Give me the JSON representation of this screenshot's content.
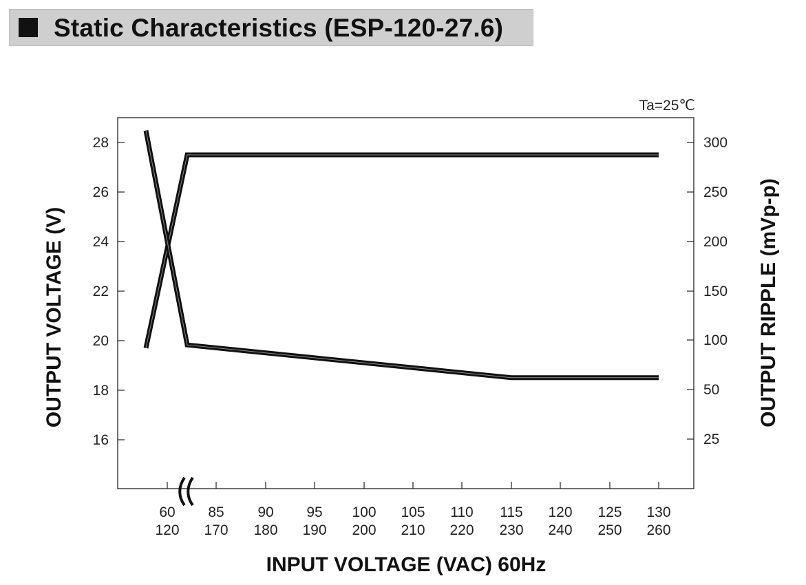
{
  "title": "Static Characteristics (ESP-120-27.6)",
  "chart_data": {
    "type": "line",
    "annotation": "Ta=25℃",
    "xlabel": "INPUT VOLTAGE (VAC) 60Hz",
    "ylabel_left": "OUTPUT VOLTAGE (V)",
    "ylabel_right": "OUTPUT RIPPLE (mVp-p)",
    "x_ticks_top": [
      "60",
      "85",
      "90",
      "95",
      "100",
      "105",
      "110",
      "115",
      "120",
      "125",
      "130"
    ],
    "x_ticks_bottom": [
      "120",
      "170",
      "180",
      "190",
      "200",
      "210",
      "220",
      "230",
      "240",
      "250",
      "260"
    ],
    "x_axis_break": "between 60/120 and 85/170",
    "y_left_ticks": [
      16,
      18,
      20,
      22,
      24,
      26,
      28
    ],
    "y_left_range": [
      14,
      29
    ],
    "y_right_ticks": [
      25,
      50,
      100,
      150,
      200,
      250,
      300
    ],
    "grid": false,
    "series": [
      {
        "name": "",
        "axis": "left",
        "unit": "V",
        "x": [
          "<60 / <120",
          "80 / 160",
          "130 / 260"
        ],
        "values": [
          19.7,
          27.5,
          27.5
        ]
      },
      {
        "name": "",
        "axis": "right",
        "unit": "mVp-p",
        "x": [
          "<60 / <120",
          "80 / 160",
          "115 / 230",
          "130 / 260"
        ],
        "values": [
          312,
          95,
          62,
          62
        ]
      }
    ]
  }
}
